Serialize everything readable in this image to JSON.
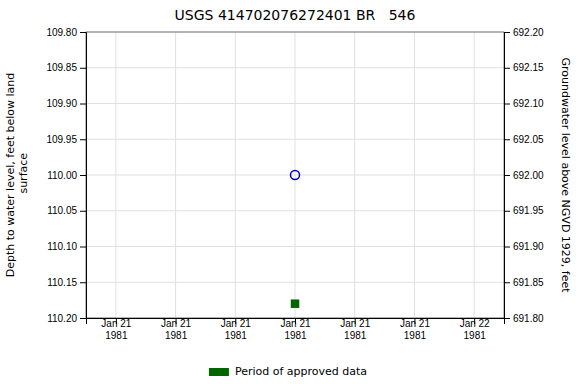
{
  "chart_data": {
    "type": "scatter",
    "title": "USGS 414702076272401 BR   546",
    "ylabel": "Depth to water level, feet below land\n surface",
    "y2label": "Groundwater level above NGVD 1929, feet",
    "categories": [
      "Jan 21\n1981",
      "Jan 21\n1981",
      "Jan 21\n1981",
      "Jan 21\n1981",
      "Jan 21\n1981",
      "Jan 21\n1981",
      "Jan 22\n1981"
    ],
    "series": [
      {
        "color": "#0000cc",
        "marker": "open-circle",
        "values": [
          null,
          null,
          null,
          110.0,
          null,
          null,
          null
        ]
      },
      {
        "name": "Period of approved data",
        "color": "#006600",
        "marker": "square",
        "values": [
          null,
          null,
          null,
          110.18,
          null,
          null,
          null
        ]
      }
    ],
    "ylim": [
      110.2,
      109.8
    ],
    "yticks": [
      {
        "value": 109.8,
        "label": "109.80"
      },
      {
        "value": 109.85,
        "label": "109.85"
      },
      {
        "value": 109.9,
        "label": "109.90"
      },
      {
        "value": 109.95,
        "label": "109.95"
      },
      {
        "value": 110.0,
        "label": "110.00"
      },
      {
        "value": 110.05,
        "label": "110.05"
      },
      {
        "value": 110.1,
        "label": "110.10"
      },
      {
        "value": 110.15,
        "label": "110.15"
      },
      {
        "value": 110.2,
        "label": "110.20"
      }
    ],
    "y2lim": [
      691.8,
      692.2
    ],
    "y2ticks": [
      {
        "value": 692.2,
        "label": "692.20"
      },
      {
        "value": 692.15,
        "label": "692.15"
      },
      {
        "value": 692.1,
        "label": "692.10"
      },
      {
        "value": 692.05,
        "label": "692.05"
      },
      {
        "value": 692.0,
        "label": "692.00"
      },
      {
        "value": 691.95,
        "label": "691.95"
      },
      {
        "value": 691.9,
        "label": "691.90"
      },
      {
        "value": 691.85,
        "label": "691.85"
      },
      {
        "value": 691.8,
        "label": "691.80"
      }
    ],
    "grid": true,
    "legend": "bottom"
  }
}
